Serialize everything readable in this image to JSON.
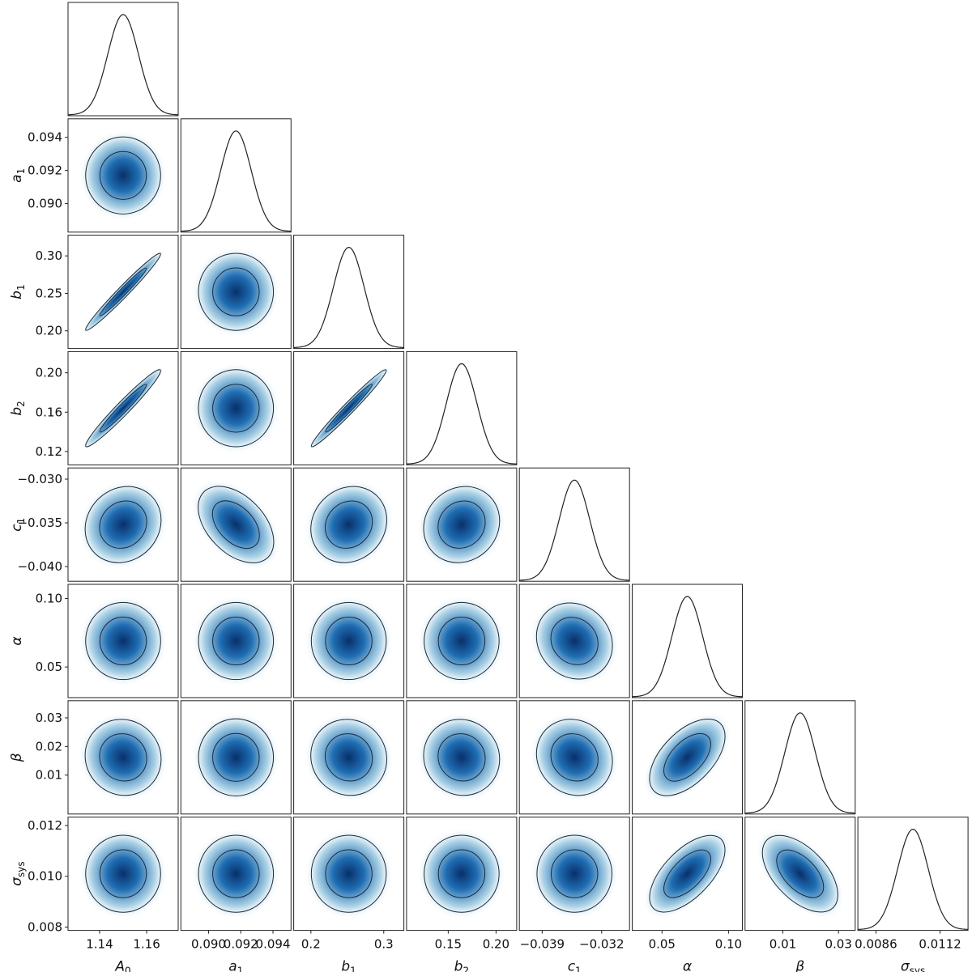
{
  "chart_data": {
    "type": "corner",
    "params": [
      {
        "label": "A",
        "sub": "0",
        "mean": 1.15,
        "sigma": 0.0065,
        "ticks": [
          1.14,
          1.16
        ],
        "tick_labels": [
          "1.14",
          "1.16"
        ]
      },
      {
        "label": "a",
        "sub": "1",
        "mean": 0.0917,
        "sigma": 0.00095,
        "ticks": [
          0.09,
          0.092,
          0.094
        ],
        "tick_labels": [
          "0.090",
          "0.092",
          "0.094"
        ]
      },
      {
        "label": "b",
        "sub": "1",
        "mean": 0.252,
        "sigma": 0.021,
        "ticks": [
          0.2,
          0.25,
          0.3
        ],
        "tick_labels": [
          "0.20",
          "0.25",
          "0.30"
        ],
        "x_ticks": [
          0.2,
          0.3
        ],
        "x_tick_labels": [
          "0.2",
          "0.3"
        ]
      },
      {
        "label": "b",
        "sub": "2",
        "mean": 0.164,
        "sigma": 0.016,
        "ticks": [
          0.12,
          0.16,
          0.2
        ],
        "tick_labels": [
          "0.12",
          "0.16",
          "0.20"
        ],
        "x_ticks": [
          0.15,
          0.2
        ],
        "x_tick_labels": [
          "0.15",
          "0.20"
        ]
      },
      {
        "label": "c",
        "sub": "1",
        "mean": -0.0352,
        "sigma": 0.0018,
        "ticks": [
          -0.03,
          -0.035,
          -0.04
        ],
        "tick_labels": [
          "−0.030",
          "−0.035",
          "−0.040"
        ],
        "x_ticks": [
          -0.039,
          -0.032
        ],
        "x_tick_labels": [
          "−0.039",
          "−0.032"
        ]
      },
      {
        "label": "α",
        "sub": "",
        "mean": 0.069,
        "sigma": 0.0115,
        "ticks": [
          0.05,
          0.1
        ],
        "tick_labels": [
          "0.05",
          "0.10"
        ]
      },
      {
        "label": "β",
        "sub": "",
        "mean": 0.0162,
        "sigma": 0.0055,
        "ticks": [
          0.01,
          0.02,
          0.03
        ],
        "tick_labels": [
          "0.01",
          "0.02",
          "0.03"
        ],
        "x_ticks": [
          0.01,
          0.03
        ],
        "x_tick_labels": [
          "0.01",
          "0.03"
        ]
      },
      {
        "label": "σ",
        "sub": "sys",
        "mean": 0.0101,
        "sigma": 0.00062,
        "ticks": [
          0.008,
          0.01,
          0.012
        ],
        "tick_labels": [
          "0.008",
          "0.010",
          "0.012"
        ],
        "x_ticks": [
          0.0086,
          0.0112
        ],
        "x_tick_labels": [
          "0.0086",
          "0.0112"
        ]
      }
    ],
    "correlations": [
      [
        1,
        0,
        0.98,
        0.97,
        0.12,
        0,
        -0.05,
        0
      ],
      [
        0,
        1,
        0,
        0,
        -0.45,
        0,
        0,
        0
      ],
      [
        0.98,
        0,
        1,
        0.98,
        0.12,
        0,
        -0.05,
        0
      ],
      [
        0.97,
        0,
        0.98,
        1,
        0.1,
        0,
        -0.05,
        0
      ],
      [
        0.12,
        -0.45,
        0.12,
        0.1,
        1,
        -0.12,
        -0.1,
        0
      ],
      [
        0,
        0,
        0,
        0,
        -0.12,
        1,
        0.55,
        0.62
      ],
      [
        -0.05,
        0,
        -0.05,
        -0.05,
        -0.1,
        0.55,
        1,
        -0.55
      ],
      [
        0,
        0,
        0,
        0,
        0,
        0.62,
        -0.55,
        1
      ]
    ],
    "contour_levels": [
      "68%",
      "95%"
    ],
    "colormap": [
      "#ffffff",
      "#1f6db2",
      "#08306b"
    ],
    "line_color": "#333333",
    "grid": false
  }
}
